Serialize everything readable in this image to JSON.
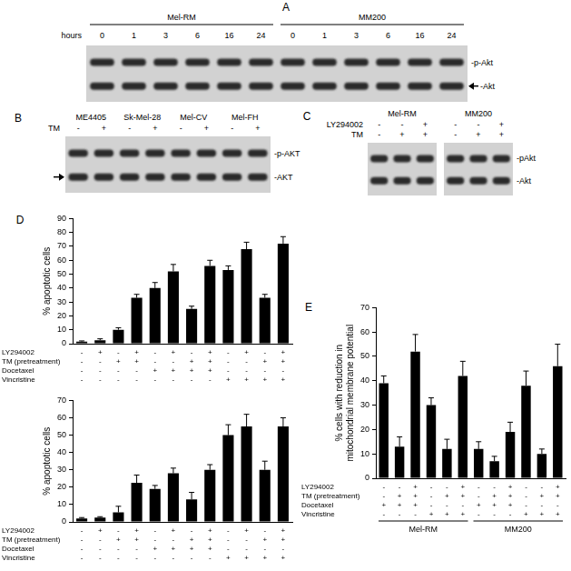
{
  "panel_labels": [
    "A",
    "B",
    "C",
    "D",
    "E"
  ],
  "blots": [
    {
      "lane_header": "hours",
      "groups": [
        {
          "label": "Mel-RM",
          "lanes": [
            0,
            1,
            3,
            6,
            16,
            24
          ]
        },
        {
          "label": "MM200",
          "lanes": [
            0,
            1,
            3,
            6,
            16,
            24
          ]
        }
      ],
      "bands": [
        "-p-Akt",
        "-Akt"
      ]
    },
    {
      "groups": [
        {
          "label": "ME4405"
        },
        {
          "label": "Sk-Mel-28"
        },
        {
          "label": "Mel-CV"
        },
        {
          "label": "Mel-FH"
        }
      ],
      "conditions": [
        {
          "label": "TM",
          "signs": [
            "-",
            "+",
            "-",
            "+",
            "-",
            "+",
            "-",
            "+"
          ]
        }
      ],
      "bands": [
        "-p-AKT",
        "-AKT"
      ]
    },
    {
      "groups": [
        {
          "label": "Mel-RM"
        },
        {
          "label": "MM200"
        }
      ],
      "conditions": [
        {
          "label": "LY294002",
          "signs": [
            "-",
            "-",
            "+",
            "-",
            "-",
            "+"
          ]
        },
        {
          "label": "TM",
          "signs": [
            "-",
            "+",
            "+",
            "-",
            "+",
            "+"
          ]
        }
      ],
      "bands": [
        "-pAkt",
        "-Akt"
      ]
    }
  ],
  "chart_data": [
    {
      "type": "bar",
      "ylabel": "% apoptotic cells",
      "values": [
        1.5,
        2.5,
        10,
        33,
        40,
        52,
        25,
        56,
        53,
        68,
        33,
        72
      ],
      "errors": [
        0.5,
        1,
        1.5,
        2.5,
        4,
        5,
        2,
        4,
        3,
        5,
        2.5,
        5
      ],
      "color": "#000000",
      "ylim": [
        0,
        90
      ],
      "yticks": [
        0,
        10,
        20,
        30,
        40,
        50,
        60,
        70,
        80,
        90
      ],
      "grid": false,
      "tick_labels": "y",
      "conditions": [
        {
          "label": "LY294002",
          "signs": [
            "-",
            "+",
            "-",
            "+",
            "-",
            "+",
            "-",
            "+",
            "-",
            "+",
            "-",
            "+"
          ]
        },
        {
          "label": "TM (pretreatment)",
          "signs": [
            "-",
            "-",
            "+",
            "+",
            "-",
            "-",
            "+",
            "+",
            "-",
            "-",
            "+",
            "+"
          ]
        },
        {
          "label": "Docetaxel",
          "signs": [
            "-",
            "-",
            "-",
            "-",
            "+",
            "+",
            "+",
            "+",
            "-",
            "-",
            "-",
            "-"
          ]
        },
        {
          "label": "Vincristine",
          "signs": [
            "-",
            "-",
            "-",
            "-",
            "-",
            "-",
            "-",
            "-",
            "+",
            "+",
            "+",
            "+"
          ]
        }
      ]
    },
    {
      "type": "bar",
      "ylabel": "% apoptotic cells",
      "values": [
        2,
        2.5,
        5.5,
        22.5,
        19,
        28,
        13,
        30,
        50,
        55,
        30,
        55
      ],
      "errors": [
        0.5,
        0.5,
        3.5,
        4.5,
        2,
        3,
        4,
        3,
        6,
        7,
        5,
        5
      ],
      "color": "#000000",
      "ylim": [
        0,
        70
      ],
      "yticks": [
        0,
        10,
        20,
        30,
        40,
        50,
        60,
        70
      ],
      "grid": false,
      "tick_labels": "y",
      "conditions": [
        {
          "label": "LY294002",
          "signs": [
            "-",
            "+",
            "-",
            "+",
            "-",
            "+",
            "-",
            "+",
            "-",
            "+",
            "-",
            "+"
          ]
        },
        {
          "label": "TM (pretreatment)",
          "signs": [
            "-",
            "-",
            "+",
            "+",
            "-",
            "-",
            "+",
            "+",
            "-",
            "-",
            "+",
            "+"
          ]
        },
        {
          "label": "Docetaxel",
          "signs": [
            "-",
            "-",
            "-",
            "-",
            "+",
            "+",
            "+",
            "+",
            "-",
            "-",
            "-",
            "-"
          ]
        },
        {
          "label": "Vincristine",
          "signs": [
            "-",
            "-",
            "-",
            "-",
            "-",
            "-",
            "-",
            "-",
            "+",
            "+",
            "+",
            "+"
          ]
        }
      ]
    },
    {
      "type": "bar",
      "ylabel": [
        "% cells with reduction in",
        "mitochondrial membrane potential"
      ],
      "values": [
        39,
        13,
        52,
        30,
        12,
        42,
        12,
        7,
        19,
        38,
        10,
        46
      ],
      "errors": [
        3,
        4,
        7,
        3,
        4,
        6,
        3,
        2,
        4,
        6,
        2,
        9
      ],
      "color": "#000000",
      "ylim": [
        0,
        70
      ],
      "yticks": [
        0,
        10,
        20,
        30,
        40,
        50,
        60,
        70
      ],
      "grid": false,
      "tick_labels": "y",
      "conditions": [
        {
          "label": "LY294002",
          "signs": [
            "-",
            "-",
            "+",
            "-",
            "-",
            "+",
            "-",
            "-",
            "+",
            "-",
            "-",
            "+"
          ]
        },
        {
          "label": "TM (pretreatment)",
          "signs": [
            "-",
            "+",
            "+",
            "-",
            "+",
            "+",
            "-",
            "+",
            "+",
            "-",
            "+",
            "+"
          ]
        },
        {
          "label": "Docetaxel",
          "signs": [
            "+",
            "+",
            "+",
            "-",
            "-",
            "-",
            "+",
            "+",
            "+",
            "-",
            "-",
            "-"
          ]
        },
        {
          "label": "Vincristine",
          "signs": [
            "-",
            "-",
            "-",
            "+",
            "+",
            "+",
            "-",
            "-",
            "-",
            "+",
            "+",
            "+"
          ]
        }
      ],
      "group_labels": [
        "Mel-RM",
        "MM200"
      ]
    }
  ]
}
